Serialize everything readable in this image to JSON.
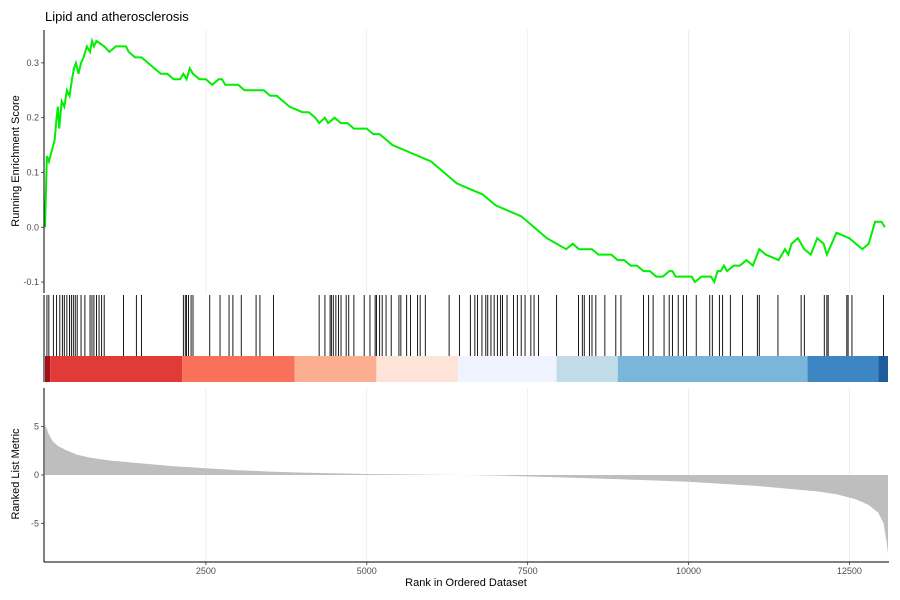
{
  "chart_data": {
    "type": "line",
    "title": "Lipid and atherosclerosis",
    "xlabel": "Rank in Ordered Dataset",
    "xlim": [
      0,
      13100
    ],
    "x_ticks": [
      2500,
      5000,
      7500,
      10000,
      12500
    ],
    "x_tick_labels": [
      "2500",
      "5000",
      "7500",
      "10000",
      "12500"
    ],
    "enrichment": {
      "ylabel": "Running Enrichment Score",
      "ylim": [
        -0.12,
        0.36
      ],
      "y_ticks": [
        -0.1,
        0.0,
        0.1,
        0.2,
        0.3
      ],
      "y_tick_labels": [
        "-0.1",
        "0.0",
        "0.1",
        "0.2",
        "0.3"
      ],
      "color": "#00ee00",
      "x": [
        0,
        30,
        60,
        150,
        180,
        200,
        220,
        260,
        300,
        340,
        380,
        420,
        450,
        480,
        520,
        560,
        600,
        650,
        700,
        730,
        760,
        800,
        920,
        1000,
        1100,
        1200,
        1260,
        1300,
        1400,
        1500,
        1600,
        1700,
        1800,
        1900,
        2000,
        2100,
        2150,
        2200,
        2250,
        2300,
        2400,
        2500,
        2600,
        2700,
        2750,
        2800,
        2900,
        3000,
        3100,
        3150,
        3200,
        3300,
        3400,
        3500,
        3550,
        3600,
        3800,
        4000,
        4100,
        4200,
        4260,
        4350,
        4400,
        4500,
        4600,
        4700,
        4800,
        4900,
        5000,
        5100,
        5200,
        5300,
        5400,
        5600,
        5800,
        6000,
        6200,
        6400,
        6600,
        6800,
        7000,
        7200,
        7400,
        7600,
        7800,
        7950,
        8100,
        8200,
        8300,
        8400,
        8500,
        8600,
        8700,
        8800,
        8900,
        9000,
        9100,
        9200,
        9300,
        9400,
        9500,
        9600,
        9700,
        9750,
        9800,
        9900,
        10000,
        10050,
        10100,
        10200,
        10300,
        10350,
        10400,
        10450,
        10500,
        10550,
        10600,
        10700,
        10800,
        10900,
        11000,
        11100,
        11200,
        11400,
        11500,
        11550,
        11600,
        11700,
        11800,
        11900,
        12000,
        12100,
        12150,
        12300,
        12500,
        12600,
        12700,
        12800,
        12900,
        13000,
        13050
      ],
      "y": [
        0.0,
        0.13,
        0.12,
        0.16,
        0.2,
        0.22,
        0.18,
        0.23,
        0.22,
        0.25,
        0.24,
        0.27,
        0.29,
        0.3,
        0.28,
        0.3,
        0.31,
        0.33,
        0.32,
        0.34,
        0.33,
        0.34,
        0.33,
        0.32,
        0.33,
        0.33,
        0.33,
        0.32,
        0.31,
        0.31,
        0.3,
        0.29,
        0.28,
        0.28,
        0.27,
        0.27,
        0.28,
        0.27,
        0.29,
        0.28,
        0.27,
        0.27,
        0.26,
        0.27,
        0.27,
        0.26,
        0.26,
        0.26,
        0.25,
        0.25,
        0.25,
        0.25,
        0.25,
        0.24,
        0.24,
        0.24,
        0.22,
        0.21,
        0.21,
        0.2,
        0.19,
        0.2,
        0.19,
        0.2,
        0.19,
        0.19,
        0.18,
        0.18,
        0.18,
        0.17,
        0.17,
        0.16,
        0.15,
        0.14,
        0.13,
        0.12,
        0.1,
        0.08,
        0.07,
        0.06,
        0.04,
        0.03,
        0.02,
        0.0,
        -0.02,
        -0.03,
        -0.04,
        -0.03,
        -0.04,
        -0.04,
        -0.04,
        -0.05,
        -0.05,
        -0.05,
        -0.06,
        -0.06,
        -0.07,
        -0.07,
        -0.08,
        -0.08,
        -0.09,
        -0.09,
        -0.08,
        -0.08,
        -0.09,
        -0.09,
        -0.09,
        -0.09,
        -0.1,
        -0.09,
        -0.09,
        -0.09,
        -0.1,
        -0.08,
        -0.08,
        -0.07,
        -0.08,
        -0.07,
        -0.07,
        -0.06,
        -0.07,
        -0.04,
        -0.05,
        -0.06,
        -0.04,
        -0.05,
        -0.03,
        -0.02,
        -0.04,
        -0.05,
        -0.02,
        -0.03,
        -0.05,
        -0.01,
        -0.02,
        -0.03,
        -0.04,
        -0.03,
        0.01,
        0.01,
        0.0
      ]
    },
    "hits": {
      "positions": [
        30,
        60,
        130,
        180,
        230,
        270,
        300,
        340,
        380,
        410,
        440,
        470,
        500,
        560,
        620,
        700,
        730,
        760,
        800,
        840,
        880,
        920,
        1220,
        1420,
        1500,
        2150,
        2180,
        2200,
        2230,
        2270,
        2300,
        2560,
        2720,
        2860,
        2920,
        3050,
        3280,
        3340,
        3550,
        4260,
        4350,
        4430,
        4450,
        4480,
        4520,
        4560,
        4600,
        4680,
        4720,
        4800,
        4960,
        5050,
        5130,
        5150,
        5200,
        5240,
        5300,
        5380,
        5500,
        5530,
        5620,
        5680,
        5790,
        5830,
        5910,
        6280,
        6440,
        6610,
        6680,
        6720,
        6790,
        6850,
        6880,
        6930,
        6980,
        7030,
        7080,
        7110,
        7180,
        7280,
        7340,
        7400,
        7460,
        7550,
        7600,
        7670,
        7950,
        8290,
        8350,
        8380,
        8460,
        8500,
        8560,
        8700,
        8870,
        8950,
        9300,
        9380,
        9450,
        9620,
        9700,
        9750,
        9840,
        9920,
        9970,
        10120,
        10330,
        10370,
        10480,
        10530,
        10650,
        10840,
        11070,
        11100,
        11390,
        11750,
        11800,
        12110,
        12150,
        12170,
        12460,
        12480,
        12540,
        13030
      ],
      "color": "#000000"
    },
    "gradient": {
      "segments": [
        {
          "from": 0,
          "to": 80,
          "color": "#a50f15"
        },
        {
          "from": 80,
          "to": 2130,
          "color": "#e13b37"
        },
        {
          "from": 2130,
          "to": 3880,
          "color": "#fa7159"
        },
        {
          "from": 3880,
          "to": 5150,
          "color": "#fcae91"
        },
        {
          "from": 5150,
          "to": 6420,
          "color": "#fee4d8"
        },
        {
          "from": 6420,
          "to": 7950,
          "color": "#eff3ff"
        },
        {
          "from": 7950,
          "to": 8900,
          "color": "#c2dbe9"
        },
        {
          "from": 8900,
          "to": 11850,
          "color": "#79b6d9"
        },
        {
          "from": 11850,
          "to": 12950,
          "color": "#3d85c3"
        },
        {
          "from": 12950,
          "to": 13100,
          "color": "#1e5c9c"
        }
      ]
    },
    "ranked_metric": {
      "ylabel": "Ranked List Metric",
      "ylim": [
        -9,
        9
      ],
      "y_ticks": [
        -5,
        0,
        5
      ],
      "y_tick_labels": [
        "-5",
        "0",
        "5"
      ],
      "fill": "#bebebe",
      "x": [
        0,
        20,
        60,
        120,
        200,
        350,
        500,
        700,
        1000,
        1500,
        2000,
        2500,
        3000,
        3500,
        4000,
        5000,
        6000,
        6500,
        7000,
        8000,
        9000,
        10000,
        10500,
        11000,
        11500,
        12000,
        12300,
        12600,
        12800,
        12950,
        13030,
        13080,
        13100
      ],
      "y": [
        5.2,
        4.9,
        4.2,
        3.5,
        3.0,
        2.5,
        2.1,
        1.8,
        1.5,
        1.2,
        0.9,
        0.7,
        0.5,
        0.35,
        0.25,
        0.1,
        0.02,
        0.0,
        -0.05,
        -0.25,
        -0.45,
        -0.7,
        -0.9,
        -1.1,
        -1.4,
        -1.7,
        -2.0,
        -2.5,
        -3.1,
        -3.9,
        -5.0,
        -7.0,
        -8.2
      ]
    }
  }
}
